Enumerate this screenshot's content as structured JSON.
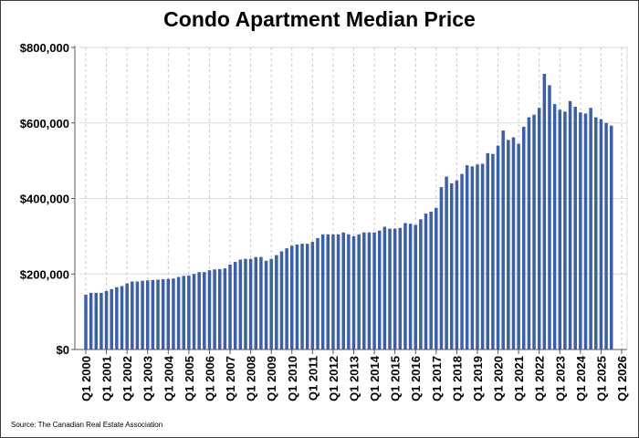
{
  "chart_data": {
    "type": "bar",
    "title": "Condo Apartment Median Price",
    "source": "Source: The Canadian Real Estate Association",
    "xlabel": "",
    "ylabel": "",
    "ylim": [
      0,
      800000
    ],
    "y_ticks": [
      "$0",
      "$200,000",
      "$400,000",
      "$600,000",
      "$800,000"
    ],
    "y_tick_values": [
      0,
      200000,
      400000,
      600000,
      800000
    ],
    "x_ticks": [
      "Q1 2000",
      "Q1 2001",
      "Q1 2002",
      "Q1 2003",
      "Q1 2004",
      "Q1 2005",
      "Q1 2006",
      "Q1 2007",
      "Q1 2008",
      "Q1 2009",
      "Q1 2010",
      "Q1 2011",
      "Q1 2012",
      "Q1 2013",
      "Q1 2014",
      "Q1 2015",
      "Q1 2016",
      "Q1 2017",
      "Q1 2018",
      "Q1 2019",
      "Q1 2020",
      "Q1 2021",
      "Q1 2022",
      "Q1 2023",
      "Q1 2024",
      "Q1 2025",
      "Q1 2026"
    ],
    "grid": true,
    "bar_color": "#3a5fad",
    "series": [
      {
        "values": [
          145000,
          150000,
          150000,
          150000,
          155000,
          160000,
          165000,
          168000,
          175000,
          180000,
          180000,
          182000,
          183000,
          184000,
          185000,
          186000,
          187000,
          188000,
          192000,
          195000,
          196000,
          200000,
          205000,
          205000,
          210000,
          212000,
          213000,
          215000,
          225000,
          232000,
          238000,
          240000,
          240000,
          245000,
          245000,
          235000,
          240000,
          250000,
          260000,
          268000,
          275000,
          278000,
          280000,
          280000,
          285000,
          295000,
          305000,
          305000,
          305000,
          305000,
          310000,
          305000,
          300000,
          305000,
          310000,
          310000,
          310000,
          315000,
          325000,
          320000,
          320000,
          322000,
          335000,
          333000,
          330000,
          345000,
          360000,
          365000,
          375000,
          430000,
          458000,
          440000,
          448000,
          465000,
          488000,
          485000,
          490000,
          492000,
          520000,
          518000,
          540000,
          580000,
          555000,
          562000,
          545000,
          590000,
          615000,
          622000,
          640000,
          730000,
          700000,
          650000,
          635000,
          630000,
          658000,
          643000,
          628000,
          625000,
          640000,
          615000,
          610000,
          600000,
          593000
        ]
      }
    ]
  }
}
